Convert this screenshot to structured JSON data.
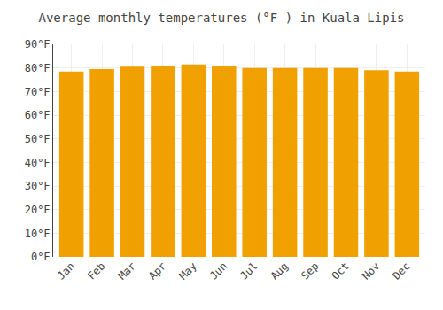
{
  "chart_data": {
    "type": "bar",
    "title": "Average monthly temperatures (°F ) in Kuala Lipis",
    "categories": [
      "Jan",
      "Feb",
      "Mar",
      "Apr",
      "May",
      "Jun",
      "Jul",
      "Aug",
      "Sep",
      "Oct",
      "Nov",
      "Dec"
    ],
    "values": [
      78.5,
      79.5,
      80.5,
      81.0,
      81.5,
      81.0,
      80.0,
      80.0,
      80.0,
      80.0,
      79.0,
      78.5
    ],
    "color": "#F0A000",
    "ylim": [
      0,
      90
    ],
    "yticks": [
      {
        "value": 0,
        "label": "0°F"
      },
      {
        "value": 10,
        "label": "10°F"
      },
      {
        "value": 20,
        "label": "20°F"
      },
      {
        "value": 30,
        "label": "30°F"
      },
      {
        "value": 40,
        "label": "40°F"
      },
      {
        "value": 50,
        "label": "50°F"
      },
      {
        "value": 60,
        "label": "60°F"
      },
      {
        "value": 70,
        "label": "70°F"
      },
      {
        "value": 80,
        "label": "80°F"
      },
      {
        "value": 90,
        "label": "90°F"
      }
    ],
    "grid": true
  }
}
